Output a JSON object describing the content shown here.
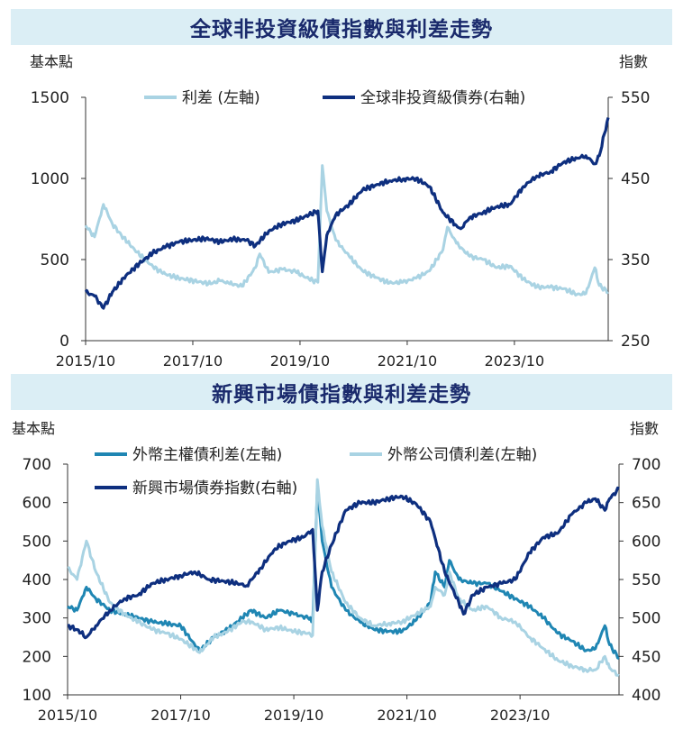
{
  "chart_data": [
    {
      "type": "line",
      "title": "全球非投資級債指數與利差走勢",
      "ylabel": "基本點",
      "y2label": "指數",
      "x_ticks": [
        "2015/10",
        "2017/10",
        "2019/10",
        "2021/10",
        "2023/10"
      ],
      "x_range": [
        "2015/10",
        "2025/07"
      ],
      "ylim": [
        0,
        1500
      ],
      "yticks": [
        0,
        500,
        1000,
        1500
      ],
      "y2lim": [
        250,
        550
      ],
      "y2ticks": [
        250,
        350,
        450,
        550
      ],
      "legend_position": "top",
      "series": [
        {
          "name": "利差 (左軸)",
          "axis": "left",
          "color": "#a9d3e3",
          "points": [
            [
              "2015/10",
              710
            ],
            [
              "2015/12",
              640
            ],
            [
              "2016/02",
              840
            ],
            [
              "2016/04",
              720
            ],
            [
              "2016/06",
              650
            ],
            [
              "2016/09",
              560
            ],
            [
              "2016/12",
              480
            ],
            [
              "2017/03",
              420
            ],
            [
              "2017/06",
              390
            ],
            [
              "2017/09",
              375
            ],
            [
              "2017/12",
              360
            ],
            [
              "2018/02",
              350
            ],
            [
              "2018/04",
              370
            ],
            [
              "2018/06",
              355
            ],
            [
              "2018/09",
              335
            ],
            [
              "2018/12",
              450
            ],
            [
              "2019/01",
              535
            ],
            [
              "2019/03",
              420
            ],
            [
              "2019/06",
              440
            ],
            [
              "2019/09",
              425
            ],
            [
              "2019/12",
              380
            ],
            [
              "2020/02",
              360
            ],
            [
              "2020/03",
              1080
            ],
            [
              "2020/04",
              800
            ],
            [
              "2020/06",
              620
            ],
            [
              "2020/09",
              520
            ],
            [
              "2020/12",
              430
            ],
            [
              "2021/03",
              390
            ],
            [
              "2021/06",
              355
            ],
            [
              "2021/09",
              360
            ],
            [
              "2021/12",
              385
            ],
            [
              "2022/03",
              430
            ],
            [
              "2022/06",
              560
            ],
            [
              "2022/07",
              700
            ],
            [
              "2022/09",
              600
            ],
            [
              "2022/12",
              520
            ],
            [
              "2023/03",
              500
            ],
            [
              "2023/06",
              450
            ],
            [
              "2023/09",
              460
            ],
            [
              "2023/12",
              380
            ],
            [
              "2024/03",
              330
            ],
            [
              "2024/06",
              330
            ],
            [
              "2024/09",
              320
            ],
            [
              "2024/12",
              285
            ],
            [
              "2025/02",
              290
            ],
            [
              "2025/04",
              450
            ],
            [
              "2025/05",
              340
            ],
            [
              "2025/07",
              300
            ]
          ]
        },
        {
          "name": "全球非投資級債券(右軸)",
          "axis": "right",
          "color": "#0e2f7f",
          "points": [
            [
              "2015/10",
              310
            ],
            [
              "2015/12",
              305
            ],
            [
              "2016/02",
              290
            ],
            [
              "2016/04",
              310
            ],
            [
              "2016/07",
              330
            ],
            [
              "2016/10",
              345
            ],
            [
              "2017/01",
              358
            ],
            [
              "2017/04",
              366
            ],
            [
              "2017/07",
              372
            ],
            [
              "2017/10",
              374
            ],
            [
              "2018/01",
              376
            ],
            [
              "2018/04",
              372
            ],
            [
              "2018/07",
              375
            ],
            [
              "2018/10",
              374
            ],
            [
              "2018/12",
              367
            ],
            [
              "2019/03",
              385
            ],
            [
              "2019/06",
              394
            ],
            [
              "2019/09",
              398
            ],
            [
              "2019/12",
              405
            ],
            [
              "2020/02",
              410
            ],
            [
              "2020/03",
              335
            ],
            [
              "2020/04",
              380
            ],
            [
              "2020/06",
              405
            ],
            [
              "2020/09",
              418
            ],
            [
              "2020/12",
              436
            ],
            [
              "2021/03",
              442
            ],
            [
              "2021/06",
              447
            ],
            [
              "2021/09",
              449
            ],
            [
              "2021/12",
              450
            ],
            [
              "2022/03",
              440
            ],
            [
              "2022/06",
              408
            ],
            [
              "2022/09",
              392
            ],
            [
              "2022/10",
              388
            ],
            [
              "2022/12",
              402
            ],
            [
              "2023/03",
              408
            ],
            [
              "2023/06",
              415
            ],
            [
              "2023/09",
              418
            ],
            [
              "2023/12",
              440
            ],
            [
              "2024/03",
              453
            ],
            [
              "2024/06",
              458
            ],
            [
              "2024/09",
              470
            ],
            [
              "2024/12",
              475
            ],
            [
              "2025/02",
              478
            ],
            [
              "2025/04",
              468
            ],
            [
              "2025/05",
              478
            ],
            [
              "2025/07",
              525
            ]
          ]
        }
      ]
    },
    {
      "type": "line",
      "title": "新興市場債指數與利差走勢",
      "ylabel": "基本點",
      "y2label": "指數",
      "x_ticks": [
        "2015/10",
        "2017/10",
        "2019/10",
        "2021/10",
        "2023/10"
      ],
      "x_range": [
        "2015/10",
        "2025/07"
      ],
      "ylim": [
        100,
        700
      ],
      "yticks": [
        100,
        200,
        300,
        400,
        500,
        600,
        700
      ],
      "y2lim": [
        400,
        700
      ],
      "y2ticks": [
        400,
        450,
        500,
        550,
        600,
        650,
        700
      ],
      "legend_position": "top",
      "series": [
        {
          "name": "外幣主權債利差(左軸)",
          "axis": "left",
          "color": "#1f86b3",
          "points": [
            [
              "2015/10",
              330
            ],
            [
              "2015/12",
              320
            ],
            [
              "2016/02",
              380
            ],
            [
              "2016/04",
              350
            ],
            [
              "2016/07",
              320
            ],
            [
              "2016/10",
              310
            ],
            [
              "2017/01",
              300
            ],
            [
              "2017/04",
              290
            ],
            [
              "2017/07",
              285
            ],
            [
              "2017/10",
              280
            ],
            [
              "2018/01",
              230
            ],
            [
              "2018/02",
              215
            ],
            [
              "2018/05",
              250
            ],
            [
              "2018/08",
              270
            ],
            [
              "2018/11",
              300
            ],
            [
              "2019/01",
              320
            ],
            [
              "2019/04",
              300
            ],
            [
              "2019/07",
              320
            ],
            [
              "2019/10",
              310
            ],
            [
              "2020/01",
              300
            ],
            [
              "2020/02",
              290
            ],
            [
              "2020/03",
              640
            ],
            [
              "2020/04",
              500
            ],
            [
              "2020/06",
              380
            ],
            [
              "2020/09",
              320
            ],
            [
              "2020/12",
              290
            ],
            [
              "2021/03",
              270
            ],
            [
              "2021/06",
              265
            ],
            [
              "2021/09",
              265
            ],
            [
              "2021/12",
              295
            ],
            [
              "2022/03",
              340
            ],
            [
              "2022/04",
              420
            ],
            [
              "2022/06",
              380
            ],
            [
              "2022/07",
              450
            ],
            [
              "2022/09",
              400
            ],
            [
              "2022/12",
              390
            ],
            [
              "2023/03",
              390
            ],
            [
              "2023/06",
              370
            ],
            [
              "2023/09",
              350
            ],
            [
              "2023/12",
              330
            ],
            [
              "2024/03",
              300
            ],
            [
              "2024/06",
              260
            ],
            [
              "2024/09",
              240
            ],
            [
              "2024/12",
              215
            ],
            [
              "2025/02",
              220
            ],
            [
              "2025/04",
              280
            ],
            [
              "2025/05",
              230
            ],
            [
              "2025/07",
              195
            ]
          ]
        },
        {
          "name": "外幣公司債利差(左軸)",
          "axis": "left",
          "color": "#a9d3e3",
          "points": [
            [
              "2015/10",
              430
            ],
            [
              "2015/12",
              400
            ],
            [
              "2016/02",
              500
            ],
            [
              "2016/04",
              420
            ],
            [
              "2016/07",
              340
            ],
            [
              "2016/10",
              310
            ],
            [
              "2017/01",
              290
            ],
            [
              "2017/04",
              270
            ],
            [
              "2017/07",
              260
            ],
            [
              "2017/10",
              245
            ],
            [
              "2018/01",
              220
            ],
            [
              "2018/02",
              210
            ],
            [
              "2018/05",
              250
            ],
            [
              "2018/08",
              265
            ],
            [
              "2018/11",
              290
            ],
            [
              "2019/01",
              290
            ],
            [
              "2019/04",
              270
            ],
            [
              "2019/07",
              275
            ],
            [
              "2019/10",
              265
            ],
            [
              "2020/01",
              260
            ],
            [
              "2020/02",
              255
            ],
            [
              "2020/03",
              660
            ],
            [
              "2020/04",
              540
            ],
            [
              "2020/06",
              420
            ],
            [
              "2020/09",
              340
            ],
            [
              "2020/12",
              300
            ],
            [
              "2021/03",
              280
            ],
            [
              "2021/06",
              285
            ],
            [
              "2021/09",
              290
            ],
            [
              "2021/12",
              310
            ],
            [
              "2022/03",
              330
            ],
            [
              "2022/04",
              380
            ],
            [
              "2022/06",
              360
            ],
            [
              "2022/07",
              420
            ],
            [
              "2022/09",
              350
            ],
            [
              "2022/12",
              320
            ],
            [
              "2023/03",
              330
            ],
            [
              "2023/06",
              300
            ],
            [
              "2023/09",
              290
            ],
            [
              "2023/12",
              250
            ],
            [
              "2024/03",
              220
            ],
            [
              "2024/06",
              190
            ],
            [
              "2024/09",
              175
            ],
            [
              "2024/12",
              165
            ],
            [
              "2025/02",
              165
            ],
            [
              "2025/04",
              200
            ],
            [
              "2025/05",
              170
            ],
            [
              "2025/07",
              150
            ]
          ]
        },
        {
          "name": "新興市場債券指數(右軸)",
          "axis": "right",
          "color": "#0e2f7f",
          "points": [
            [
              "2015/10",
              490
            ],
            [
              "2015/12",
              485
            ],
            [
              "2016/02",
              475
            ],
            [
              "2016/04",
              490
            ],
            [
              "2016/07",
              510
            ],
            [
              "2016/10",
              525
            ],
            [
              "2017/01",
              530
            ],
            [
              "2017/04",
              545
            ],
            [
              "2017/07",
              550
            ],
            [
              "2017/10",
              555
            ],
            [
              "2018/01",
              560
            ],
            [
              "2018/04",
              550
            ],
            [
              "2018/07",
              548
            ],
            [
              "2018/10",
              545
            ],
            [
              "2018/12",
              542
            ],
            [
              "2019/03",
              565
            ],
            [
              "2019/06",
              590
            ],
            [
              "2019/09",
              600
            ],
            [
              "2019/12",
              605
            ],
            [
              "2020/02",
              615
            ],
            [
              "2020/03",
              510
            ],
            [
              "2020/04",
              560
            ],
            [
              "2020/06",
              595
            ],
            [
              "2020/09",
              640
            ],
            [
              "2020/12",
              650
            ],
            [
              "2021/03",
              650
            ],
            [
              "2021/06",
              655
            ],
            [
              "2021/09",
              658
            ],
            [
              "2021/12",
              648
            ],
            [
              "2022/03",
              625
            ],
            [
              "2022/06",
              560
            ],
            [
              "2022/09",
              520
            ],
            [
              "2022/10",
              505
            ],
            [
              "2022/12",
              530
            ],
            [
              "2023/03",
              540
            ],
            [
              "2023/06",
              545
            ],
            [
              "2023/09",
              550
            ],
            [
              "2023/12",
              585
            ],
            [
              "2024/03",
              605
            ],
            [
              "2024/06",
              610
            ],
            [
              "2024/09",
              635
            ],
            [
              "2024/12",
              650
            ],
            [
              "2025/02",
              655
            ],
            [
              "2025/04",
              640
            ],
            [
              "2025/05",
              655
            ],
            [
              "2025/07",
              668
            ]
          ]
        }
      ]
    }
  ]
}
